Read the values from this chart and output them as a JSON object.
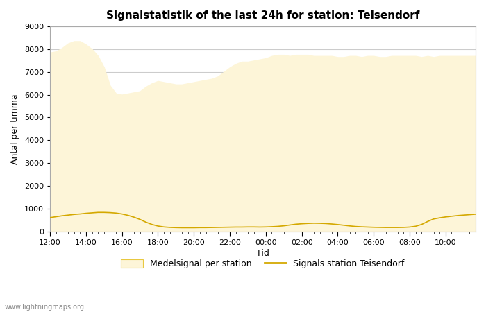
{
  "title": "Signalstatistik of the last 24h for station: Teisendorf",
  "xlabel": "Tid",
  "ylabel": "Antal per timma",
  "watermark": "www.lightningmaps.org",
  "legend_labels": [
    "Medelsignal per station",
    "Signals station Teisendorf"
  ],
  "fill_color": "#fdf5d8",
  "line_color": "#d4a800",
  "background_color": "#ffffff",
  "plot_bg_color": "#ffffff",
  "grid_color": "#cccccc",
  "ylim": [
    0,
    9000
  ],
  "yticks": [
    0,
    1000,
    2000,
    3000,
    4000,
    5000,
    6000,
    7000,
    8000,
    9000
  ],
  "x_labels": [
    "12:00",
    "14:00",
    "16:00",
    "18:00",
    "20:00",
    "22:00",
    "00:00",
    "02:00",
    "04:00",
    "06:00",
    "08:00",
    "10:00"
  ],
  "fill_data": [
    7850,
    7900,
    8050,
    8250,
    8350,
    8350,
    8200,
    8000,
    7700,
    7200,
    6400,
    6050,
    6000,
    6050,
    6100,
    6150,
    6350,
    6500,
    6600,
    6550,
    6500,
    6450,
    6450,
    6500,
    6550,
    6600,
    6650,
    6700,
    6800,
    7000,
    7200,
    7350,
    7450,
    7450,
    7500,
    7550,
    7600,
    7700,
    7750,
    7750,
    7700,
    7750,
    7750,
    7750,
    7700,
    7700,
    7700,
    7700,
    7650,
    7650,
    7700,
    7700,
    7650,
    7700,
    7700,
    7650,
    7650,
    7700,
    7700,
    7700,
    7700,
    7700,
    7650,
    7700,
    7650,
    7700,
    7700,
    7700,
    7700,
    7700,
    7700,
    7700
  ],
  "line_data": [
    600,
    640,
    680,
    710,
    740,
    760,
    790,
    810,
    830,
    830,
    820,
    800,
    760,
    700,
    620,
    520,
    400,
    300,
    230,
    190,
    170,
    160,
    155,
    155,
    155,
    160,
    160,
    165,
    170,
    175,
    180,
    185,
    185,
    190,
    190,
    185,
    190,
    200,
    215,
    240,
    275,
    310,
    330,
    345,
    355,
    350,
    340,
    320,
    295,
    265,
    235,
    210,
    195,
    185,
    175,
    170,
    165,
    165,
    165,
    170,
    185,
    220,
    300,
    430,
    540,
    590,
    630,
    660,
    690,
    710,
    730,
    750
  ],
  "n_points": 72,
  "tick_every": 6,
  "minor_ticks_per_label": 6
}
